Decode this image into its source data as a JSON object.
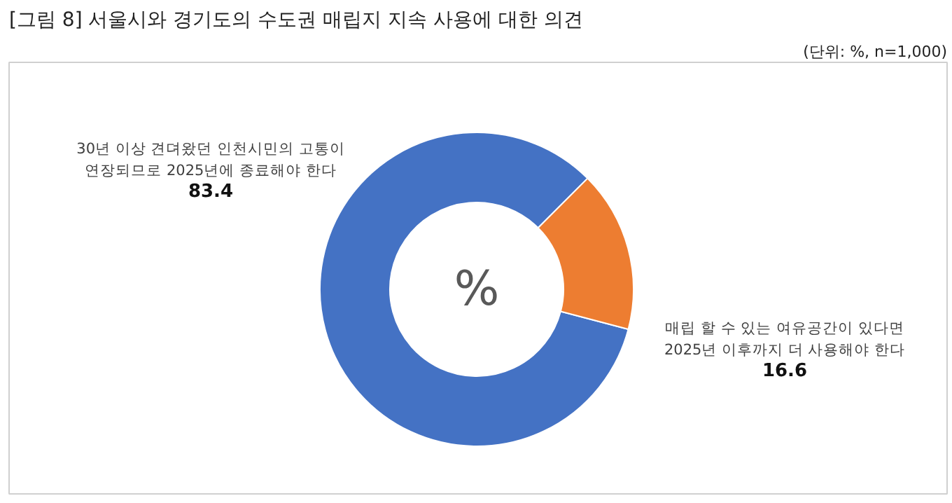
{
  "chart_data": {
    "type": "donut",
    "title": "[그림 8] 서울시와 경기도의 수도권 매립지 지속 사용에 대한 의견",
    "subtitle": "(단위: %, n=1,000)",
    "categories": [
      "30년 이상 견뎌왔던 인천시민의 고통이\n연장되므로 2025년에 종료해야 한다",
      "매립 할 수 있는 여유공간이 있다면\n2025년 이후까지 더 사용해야 한다"
    ],
    "values": [
      83.4,
      16.6
    ],
    "colors": [
      "#4472c4",
      "#ed7d31"
    ],
    "data_labels": true,
    "annotations": [
      "%"
    ]
  }
}
